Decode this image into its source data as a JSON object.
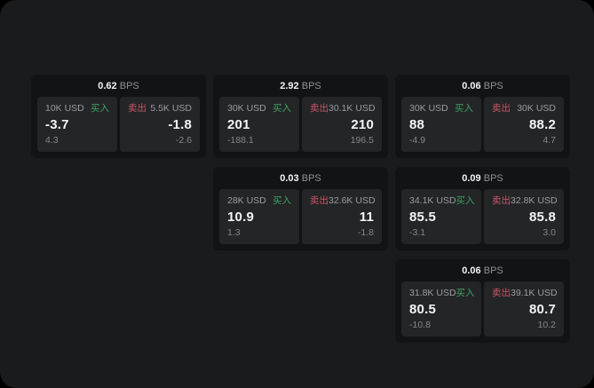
{
  "labels": {
    "buy": "买入",
    "sell": "卖出",
    "bps_suffix": "BPS"
  },
  "colors": {
    "buy": "#3fa263",
    "sell": "#cc5566",
    "surface": "#1a1b1d",
    "card": "#121315",
    "panel": "#232527",
    "value_text": "#f4f5f6",
    "muted_text": "#9a9da1"
  },
  "cards": [
    {
      "row": 1,
      "col": 1,
      "bps": "0.62",
      "buy": {
        "notional": "10K USD",
        "value": "-3.7",
        "change": "4.3"
      },
      "sell": {
        "notional": "5.5K USD",
        "value": "-1.8",
        "change": "-2.6"
      }
    },
    {
      "row": 1,
      "col": 2,
      "bps": "2.92",
      "buy": {
        "notional": "30K USD",
        "value": "201",
        "change": "-188.1"
      },
      "sell": {
        "notional": "30.1K USD",
        "value": "210",
        "change": "196.5"
      }
    },
    {
      "row": 1,
      "col": 3,
      "bps": "0.06",
      "buy": {
        "notional": "30K USD",
        "value": "88",
        "change": "-4.9"
      },
      "sell": {
        "notional": "30K USD",
        "value": "88.2",
        "change": "4.7"
      }
    },
    {
      "row": 2,
      "col": 2,
      "bps": "0.03",
      "buy": {
        "notional": "28K USD",
        "value": "10.9",
        "change": "1.3"
      },
      "sell": {
        "notional": "32.6K USD",
        "value": "11",
        "change": "-1.8"
      }
    },
    {
      "row": 2,
      "col": 3,
      "bps": "0.09",
      "buy": {
        "notional": "34.1K USD",
        "value": "85.5",
        "change": "-3.1"
      },
      "sell": {
        "notional": "32.8K USD",
        "value": "85.8",
        "change": "3.0"
      }
    },
    {
      "row": 3,
      "col": 3,
      "bps": "0.06",
      "buy": {
        "notional": "31.8K USD",
        "value": "80.5",
        "change": "-10.8"
      },
      "sell": {
        "notional": "39.1K USD",
        "value": "80.7",
        "change": "10.2"
      }
    }
  ]
}
